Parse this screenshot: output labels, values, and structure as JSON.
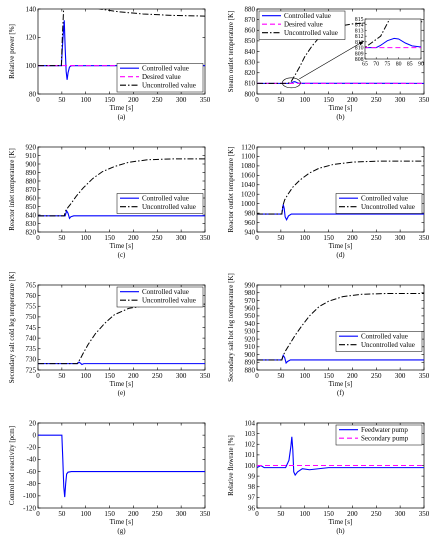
{
  "figure": {
    "colors": {
      "controlled": "#0000ff",
      "desired": "#ff00ff",
      "uncontrolled": "#000000",
      "feedwater": "#0000ff",
      "secondary": "#ff00ff"
    }
  },
  "chart_data": [
    {
      "type": "line",
      "panel_label": "(a)",
      "xlabel": "Time [s]",
      "ylabel": "Relative power [%]",
      "xlim": [
        0,
        350
      ],
      "ylim": [
        80,
        140
      ],
      "xticks": [
        "0",
        "50",
        "100",
        "150",
        "200",
        "250",
        "300",
        "350"
      ],
      "yticks": [
        "80",
        "100",
        "120",
        "140"
      ],
      "legend": {
        "placement": "bottom-right",
        "entries": [
          "Controlled value",
          "Desired value",
          "Uncontrolled value"
        ]
      },
      "series": [
        {
          "name": "Controlled value",
          "color": "#0000ff",
          "dash": "solid",
          "points": [
            [
              0,
              100
            ],
            [
              49,
              100
            ],
            [
              52,
              118
            ],
            [
              55,
              132
            ],
            [
              57,
              112
            ],
            [
              59,
              96
            ],
            [
              61,
              90
            ],
            [
              63,
              95
            ],
            [
              66,
              99
            ],
            [
              70,
              100
            ],
            [
              350,
              100
            ]
          ]
        },
        {
          "name": "Desired value",
          "color": "#ff00ff",
          "dash": "dashed",
          "points": [
            [
              0,
              100
            ],
            [
              350,
              100
            ]
          ]
        },
        {
          "name": "Uncontrolled value",
          "color": "#000000",
          "dash": "dashdot",
          "points": [
            [
              0,
              100
            ],
            [
              49,
              100
            ],
            [
              51,
              120
            ],
            [
              54,
              142
            ],
            [
              58,
              149
            ],
            [
              65,
              148
            ],
            [
              80,
              146
            ],
            [
              100,
              143
            ],
            [
              130,
              140
            ],
            [
              170,
              138
            ],
            [
              220,
              136.5
            ],
            [
              280,
              135.5
            ],
            [
              350,
              135
            ]
          ]
        }
      ]
    },
    {
      "type": "line",
      "panel_label": "(b)",
      "xlabel": "Time [s]",
      "ylabel": "Steam outlet temperature [K]",
      "xlim": [
        0,
        350
      ],
      "ylim": [
        800,
        880
      ],
      "xticks": [
        "0",
        "50",
        "100",
        "150",
        "200",
        "250",
        "300",
        "350"
      ],
      "yticks": [
        "800",
        "810",
        "820",
        "830",
        "840",
        "850",
        "860",
        "870",
        "880"
      ],
      "legend": {
        "placement": "top-left",
        "entries": [
          "Controlled value",
          "Desired value",
          "Uncontrolled value"
        ]
      },
      "inset": {
        "xlim": [
          65,
          90
        ],
        "ylim": [
          808,
          815
        ],
        "xticks": [
          "65",
          "70",
          "75",
          "80",
          "85",
          "90"
        ],
        "yticks": [
          "808",
          "809",
          "810",
          "811",
          "812",
          "813",
          "814",
          "815"
        ]
      },
      "series": [
        {
          "name": "Controlled value",
          "color": "#0000ff",
          "dash": "solid",
          "points": [
            [
              0,
              810
            ],
            [
              70,
              810
            ],
            [
              72,
              810.4
            ],
            [
              75,
              811.2
            ],
            [
              78,
              811.6
            ],
            [
              80,
              811.5
            ],
            [
              83,
              810.8
            ],
            [
              86,
              810.3
            ],
            [
              90,
              810.1
            ],
            [
              350,
              810
            ]
          ]
        },
        {
          "name": "Desired value",
          "color": "#ff00ff",
          "dash": "dashed",
          "points": [
            [
              0,
              810
            ],
            [
              350,
              810
            ]
          ]
        },
        {
          "name": "Uncontrolled value",
          "color": "#000000",
          "dash": "dashdot",
          "points": [
            [
              0,
              810
            ],
            [
              65,
              810
            ],
            [
              72,
              812
            ],
            [
              80,
              818
            ],
            [
              90,
              826
            ],
            [
              100,
              835
            ],
            [
              115,
              845
            ],
            [
              130,
              853
            ],
            [
              150,
              860
            ],
            [
              175,
              864
            ],
            [
              200,
              866
            ],
            [
              250,
              867.5
            ],
            [
              300,
              868
            ],
            [
              350,
              868
            ]
          ]
        }
      ]
    },
    {
      "type": "line",
      "panel_label": "(c)",
      "xlabel": "Time [s]",
      "ylabel": "Reactor inlet temperature [K]",
      "xlim": [
        0,
        350
      ],
      "ylim": [
        820,
        920
      ],
      "xticks": [
        "0",
        "50",
        "100",
        "150",
        "200",
        "250",
        "300",
        "350"
      ],
      "yticks": [
        "820",
        "830",
        "840",
        "850",
        "860",
        "870",
        "880",
        "890",
        "900",
        "910",
        "920"
      ],
      "legend": {
        "placement": "center-right",
        "entries": [
          "Controlled value",
          "Uncontrolled value"
        ]
      },
      "series": [
        {
          "name": "Controlled value",
          "color": "#0000ff",
          "dash": "solid",
          "points": [
            [
              0,
              839
            ],
            [
              57,
              839
            ],
            [
              60,
              845
            ],
            [
              63,
              842
            ],
            [
              66,
              836
            ],
            [
              69,
              838
            ],
            [
              75,
              839
            ],
            [
              350,
              839
            ]
          ]
        },
        {
          "name": "Uncontrolled value",
          "color": "#000000",
          "dash": "dashdot",
          "points": [
            [
              0,
              839
            ],
            [
              55,
              839
            ],
            [
              58,
              845
            ],
            [
              63,
              849
            ],
            [
              70,
              854
            ],
            [
              80,
              862
            ],
            [
              95,
              872
            ],
            [
              115,
              883
            ],
            [
              135,
              891
            ],
            [
              160,
              897
            ],
            [
              190,
              902
            ],
            [
              230,
              905
            ],
            [
              280,
              906
            ],
            [
              350,
              906
            ]
          ]
        }
      ]
    },
    {
      "type": "line",
      "panel_label": "(d)",
      "xlabel": "Time [s]",
      "ylabel": "Reactor outlet temperature [K]",
      "xlim": [
        0,
        350
      ],
      "ylim": [
        940,
        1120
      ],
      "xticks": [
        "0",
        "50",
        "100",
        "150",
        "200",
        "250",
        "300",
        "350"
      ],
      "yticks": [
        "940",
        "960",
        "980",
        "1000",
        "1020",
        "1040",
        "1060",
        "1080",
        "1100",
        "1120"
      ],
      "legend": {
        "placement": "center-right",
        "entries": [
          "Controlled value",
          "Uncontrolled value"
        ]
      },
      "series": [
        {
          "name": "Controlled value",
          "color": "#0000ff",
          "dash": "solid",
          "points": [
            [
              0,
              978
            ],
            [
              52,
              978
            ],
            [
              55,
              998
            ],
            [
              57,
              990
            ],
            [
              59,
              972
            ],
            [
              62,
              966
            ],
            [
              66,
              974
            ],
            [
              72,
              978
            ],
            [
              350,
              978
            ]
          ]
        },
        {
          "name": "Uncontrolled value",
          "color": "#000000",
          "dash": "dashdot",
          "points": [
            [
              0,
              978
            ],
            [
              52,
              978
            ],
            [
              54,
              995
            ],
            [
              58,
              1008
            ],
            [
              65,
              1020
            ],
            [
              75,
              1035
            ],
            [
              90,
              1050
            ],
            [
              110,
              1065
            ],
            [
              130,
              1075
            ],
            [
              160,
              1083
            ],
            [
              200,
              1088
            ],
            [
              250,
              1090
            ],
            [
              300,
              1090
            ],
            [
              350,
              1090
            ]
          ]
        }
      ]
    },
    {
      "type": "line",
      "panel_label": "(e)",
      "xlabel": "Time [s]",
      "ylabel": "Secondary salt cold leg temperature [K]",
      "xlim": [
        0,
        350
      ],
      "ylim": [
        725,
        765
      ],
      "xticks": [
        "0",
        "50",
        "100",
        "150",
        "200",
        "250",
        "300",
        "350"
      ],
      "yticks": [
        "725",
        "730",
        "735",
        "740",
        "745",
        "750",
        "755",
        "760",
        "765"
      ],
      "legend": {
        "placement": "top-right",
        "entries": [
          "Controlled value",
          "Uncontrolled value"
        ]
      },
      "series": [
        {
          "name": "Controlled value",
          "color": "#0000ff",
          "dash": "solid",
          "points": [
            [
              0,
              728
            ],
            [
              83,
              728
            ],
            [
              86,
              728.7
            ],
            [
              89,
              728.2
            ],
            [
              92,
              727.6
            ],
            [
              96,
              728
            ],
            [
              350,
              728
            ]
          ]
        },
        {
          "name": "Uncontrolled value",
          "color": "#000000",
          "dash": "dashdot",
          "points": [
            [
              0,
              728
            ],
            [
              82,
              728
            ],
            [
              88,
              730
            ],
            [
              95,
              733
            ],
            [
              105,
              737
            ],
            [
              120,
              742
            ],
            [
              140,
              747
            ],
            [
              160,
              751
            ],
            [
              190,
              754
            ],
            [
              230,
              755.5
            ],
            [
              280,
              756
            ],
            [
              350,
              756
            ]
          ]
        }
      ]
    },
    {
      "type": "line",
      "panel_label": "(f)",
      "xlabel": "Time [s]",
      "ylabel": "Secondary salt hot leg temperature [K]",
      "xlim": [
        0,
        350
      ],
      "ylim": [
        880,
        990
      ],
      "xticks": [
        "0",
        "50",
        "100",
        "150",
        "200",
        "250",
        "300",
        "350"
      ],
      "yticks": [
        "880",
        "890",
        "900",
        "910",
        "920",
        "930",
        "940",
        "950",
        "960",
        "970",
        "980",
        "990"
      ],
      "legend": {
        "placement": "center-right",
        "entries": [
          "Controlled value",
          "Uncontrolled value"
        ]
      },
      "series": [
        {
          "name": "Controlled value",
          "color": "#0000ff",
          "dash": "solid",
          "points": [
            [
              0,
              893
            ],
            [
              52,
              893
            ],
            [
              55,
              899
            ],
            [
              58,
              896
            ],
            [
              61,
              889
            ],
            [
              64,
              891
            ],
            [
              70,
              893
            ],
            [
              350,
              893
            ]
          ]
        },
        {
          "name": "Uncontrolled value",
          "color": "#000000",
          "dash": "dashdot",
          "points": [
            [
              0,
              893
            ],
            [
              52,
              893
            ],
            [
              55,
              899
            ],
            [
              60,
              905
            ],
            [
              68,
              913
            ],
            [
              80,
              925
            ],
            [
              95,
              938
            ],
            [
              110,
              950
            ],
            [
              130,
              962
            ],
            [
              150,
              969
            ],
            [
              180,
              975
            ],
            [
              220,
              978
            ],
            [
              270,
              979
            ],
            [
              350,
              979
            ]
          ]
        }
      ]
    },
    {
      "type": "line",
      "panel_label": "(g)",
      "xlabel": "Time [s]",
      "ylabel": "Control rod reactivity [pcm]",
      "xlim": [
        0,
        350
      ],
      "ylim": [
        -120,
        20
      ],
      "xticks": [
        "0",
        "50",
        "100",
        "150",
        "200",
        "250",
        "300",
        "350"
      ],
      "yticks": [
        "-120",
        "-100",
        "-80",
        "-60",
        "-40",
        "-20",
        "0",
        "20"
      ],
      "legend": null,
      "series": [
        {
          "name": "",
          "color": "#0000ff",
          "dash": "solid",
          "points": [
            [
              0,
              0
            ],
            [
              50,
              0
            ],
            [
              52,
              -40
            ],
            [
              54,
              -85
            ],
            [
              56,
              -102
            ],
            [
              58,
              -80
            ],
            [
              60,
              -64
            ],
            [
              63,
              -61
            ],
            [
              70,
              -60
            ],
            [
              350,
              -60
            ]
          ]
        }
      ]
    },
    {
      "type": "line",
      "panel_label": "(h)",
      "xlabel": "Time [s]",
      "ylabel": "Relative flowrate [%]",
      "xlim": [
        0,
        350
      ],
      "ylim": [
        96,
        104
      ],
      "xticks": [
        "0",
        "50",
        "100",
        "150",
        "200",
        "250",
        "300",
        "350"
      ],
      "yticks": [
        "96",
        "97",
        "98",
        "99",
        "100",
        "101",
        "102",
        "103",
        "104"
      ],
      "legend": {
        "placement": "top-right",
        "entries": [
          "Feedwater pump",
          "Secondary pump"
        ]
      },
      "series": [
        {
          "name": "Feedwater pump",
          "color": "#0000ff",
          "dash": "solid",
          "points": [
            [
              0,
              99.8
            ],
            [
              8,
              100
            ],
            [
              15,
              99.8
            ],
            [
              60,
              99.8
            ],
            [
              67,
              100.5
            ],
            [
              71,
              101.8
            ],
            [
              73,
              102.7
            ],
            [
              75,
              101.5
            ],
            [
              77,
              99.4
            ],
            [
              80,
              99.1
            ],
            [
              85,
              99.4
            ],
            [
              95,
              99.7
            ],
            [
              110,
              99.6
            ],
            [
              150,
              99.8
            ],
            [
              350,
              99.8
            ]
          ]
        },
        {
          "name": "Secondary pump",
          "color": "#ff00ff",
          "dash": "dashed",
          "points": [
            [
              0,
              100
            ],
            [
              350,
              100
            ]
          ]
        }
      ]
    }
  ]
}
